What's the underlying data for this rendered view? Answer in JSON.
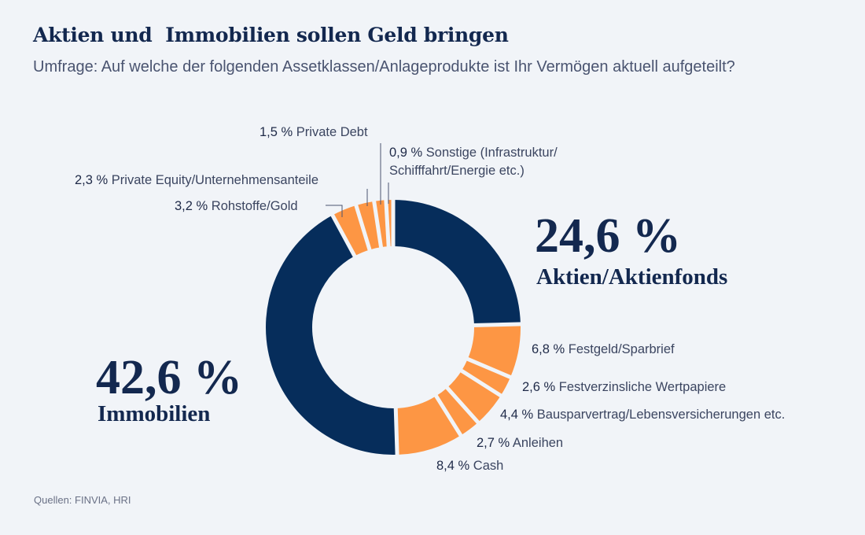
{
  "header": {
    "title": "Aktien und  Immobilien sollen Geld bringen",
    "subtitle": "Umfrage: Auf welche der folgenden Assetklassen/Anlageprodukte ist Ihr Vermögen aktuell aufgeteilt?"
  },
  "colors": {
    "primary": "#062d5b",
    "secondary": "#fd9644",
    "background": "#f1f4f8"
  },
  "chart_data": {
    "type": "pie",
    "variant": "donut",
    "title": "Aktien und  Immobilien sollen Geld bringen",
    "subtitle": "Umfrage: Auf welche der folgenden Assetklassen/Anlageprodukte ist Ihr Vermögen aktuell aufgeteilt?",
    "unit": "%",
    "start": "12 o'clock, clockwise",
    "slices": [
      {
        "label": "Aktien/Aktienfonds",
        "value": 24.6,
        "display": "24,6 %",
        "color": "#062d5b",
        "highlight": true
      },
      {
        "label": "Festgeld/Sparbrief",
        "value": 6.8,
        "display": "6,8 %",
        "color": "#fd9644"
      },
      {
        "label": "Festverzinsliche Wertpapiere",
        "value": 2.6,
        "display": "2,6 %",
        "color": "#fd9644"
      },
      {
        "label": "Bausparvertrag/Lebensversicherungen etc.",
        "value": 4.4,
        "display": "4,4 %",
        "color": "#fd9644"
      },
      {
        "label": "Anleihen",
        "value": 2.7,
        "display": "2,7 %",
        "color": "#fd9644"
      },
      {
        "label": "Cash",
        "value": 8.4,
        "display": "8,4 %",
        "color": "#fd9644"
      },
      {
        "label": "Immobilien",
        "value": 42.6,
        "display": "42,6 %",
        "color": "#062d5b",
        "highlight": true
      },
      {
        "label": "Rohstoffe/Gold",
        "value": 3.2,
        "display": "3,2 %",
        "color": "#fd9644"
      },
      {
        "label": "Private Equity/Unternehmensanteile",
        "value": 2.3,
        "display": "2,3 %",
        "color": "#fd9644"
      },
      {
        "label": "Private Debt",
        "value": 1.5,
        "display": "1,5 %",
        "color": "#fd9644"
      },
      {
        "label": "Sonstige (Infrastruktur/ Schifffahrt/Energie etc.)",
        "value": 0.9,
        "display": "0,9 %",
        "color": "#fd9644",
        "label_lines": [
          "Sonstige (Infrastruktur/",
          "Schifffahrt/Energie etc.)"
        ]
      }
    ]
  },
  "footer": {
    "source": "Quellen: FINVIA, HRI"
  }
}
